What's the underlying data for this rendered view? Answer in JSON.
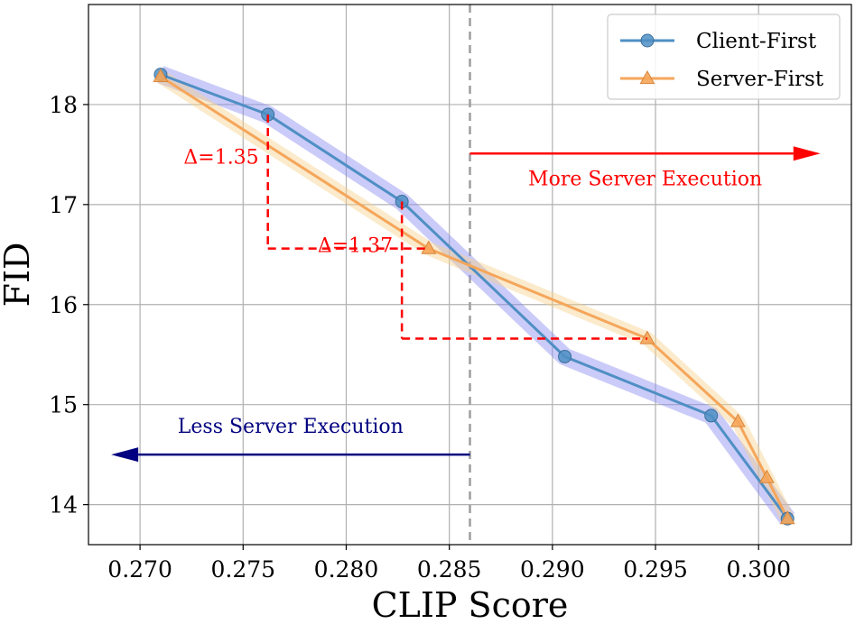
{
  "chart_data": {
    "type": "line",
    "title": "",
    "xlabel": "CLIP Score",
    "ylabel": "FID",
    "xlim": [
      0.2675,
      0.3045
    ],
    "ylim": [
      13.6,
      19.0
    ],
    "xticks": [
      0.27,
      0.275,
      0.28,
      0.285,
      0.29,
      0.295,
      0.3
    ],
    "xtick_labels": [
      "0.270",
      "0.275",
      "0.280",
      "0.285",
      "0.290",
      "0.295",
      "0.300"
    ],
    "yticks": [
      14,
      15,
      16,
      17,
      18
    ],
    "ytick_labels": [
      "14",
      "15",
      "16",
      "17",
      "18"
    ],
    "grid": true,
    "legend_position": "top-right",
    "series": [
      {
        "name": "Client-First",
        "color": "#4f8fc4",
        "band_color": "#8a8cf0",
        "marker": "circle",
        "x": [
          0.271,
          0.2762,
          0.2827,
          0.2906,
          0.2977,
          0.3014
        ],
        "y": [
          18.3,
          17.9,
          17.03,
          15.48,
          14.89,
          13.86
        ],
        "band_halfwidth": 0.09
      },
      {
        "name": "Server-First",
        "color": "#f5a65b",
        "band_color": "#f7d28f",
        "marker": "triangle",
        "x": [
          0.271,
          0.284,
          0.2946,
          0.299,
          0.3004,
          0.3014
        ],
        "y": [
          18.28,
          16.56,
          15.66,
          14.83,
          14.27,
          13.86
        ],
        "band_halfwidth": 0.07
      }
    ],
    "vline": {
      "x": 0.286,
      "color": "#9e9e9e",
      "style": "dashed"
    },
    "annotations": {
      "delta1": {
        "text": "Δ=1.35",
        "color": "#ff0000",
        "vertical_x": 0.2762,
        "y_top": 17.9,
        "y_bottom": 16.56,
        "horizontal_x_end": 0.284
      },
      "delta2": {
        "text": "Δ=1.37",
        "color": "#ff0000",
        "vertical_x": 0.2827,
        "y_top": 17.03,
        "y_bottom": 15.66,
        "horizontal_x_end": 0.2946
      },
      "more_server": {
        "text": "More Server Execution",
        "color": "#ff0000",
        "x_start": 0.286,
        "x_end": 0.303,
        "y": 17.51
      },
      "less_server": {
        "text": "Less Server Execution",
        "color": "#000080",
        "x_start": 0.286,
        "x_end": 0.2686,
        "y": 14.5
      }
    }
  }
}
